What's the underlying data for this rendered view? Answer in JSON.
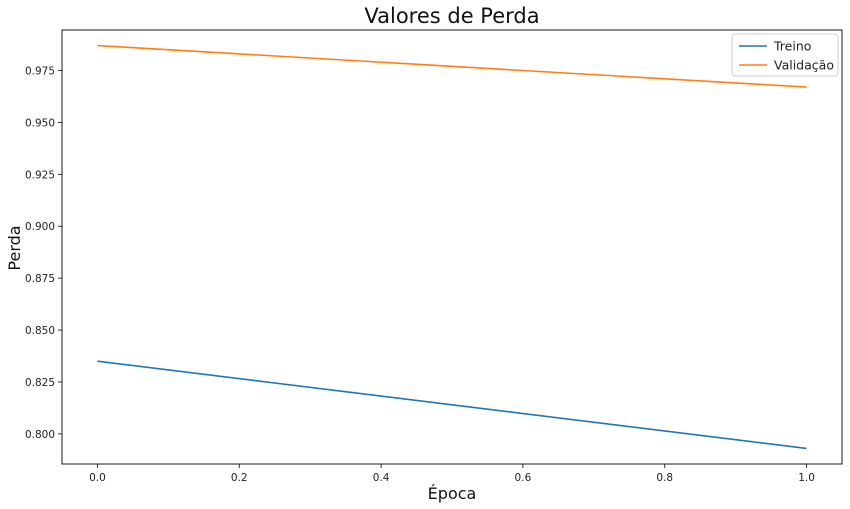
{
  "chart_data": {
    "type": "line",
    "title": "Valores de Perda",
    "xlabel": "Época",
    "ylabel": "Perda",
    "x": [
      0.0,
      1.0
    ],
    "xlim": [
      -0.05,
      1.05
    ],
    "ylim": [
      0.7855,
      0.9945
    ],
    "xticks": [
      0.0,
      0.2,
      0.4,
      0.6,
      0.8,
      1.0
    ],
    "xtick_labels": [
      "0.0",
      "0.2",
      "0.4",
      "0.6",
      "0.8",
      "1.0"
    ],
    "yticks": [
      0.8,
      0.825,
      0.85,
      0.875,
      0.9,
      0.925,
      0.95,
      0.975
    ],
    "ytick_labels": [
      "0.800",
      "0.825",
      "0.850",
      "0.875",
      "0.900",
      "0.925",
      "0.950",
      "0.975"
    ],
    "grid": false,
    "legend_position": "top-right",
    "series": [
      {
        "name": "Treino",
        "values": [
          0.835,
          0.793
        ],
        "color": "#1f77b4"
      },
      {
        "name": "Validação",
        "values": [
          0.987,
          0.967
        ],
        "color": "#ff7f0e"
      }
    ]
  }
}
